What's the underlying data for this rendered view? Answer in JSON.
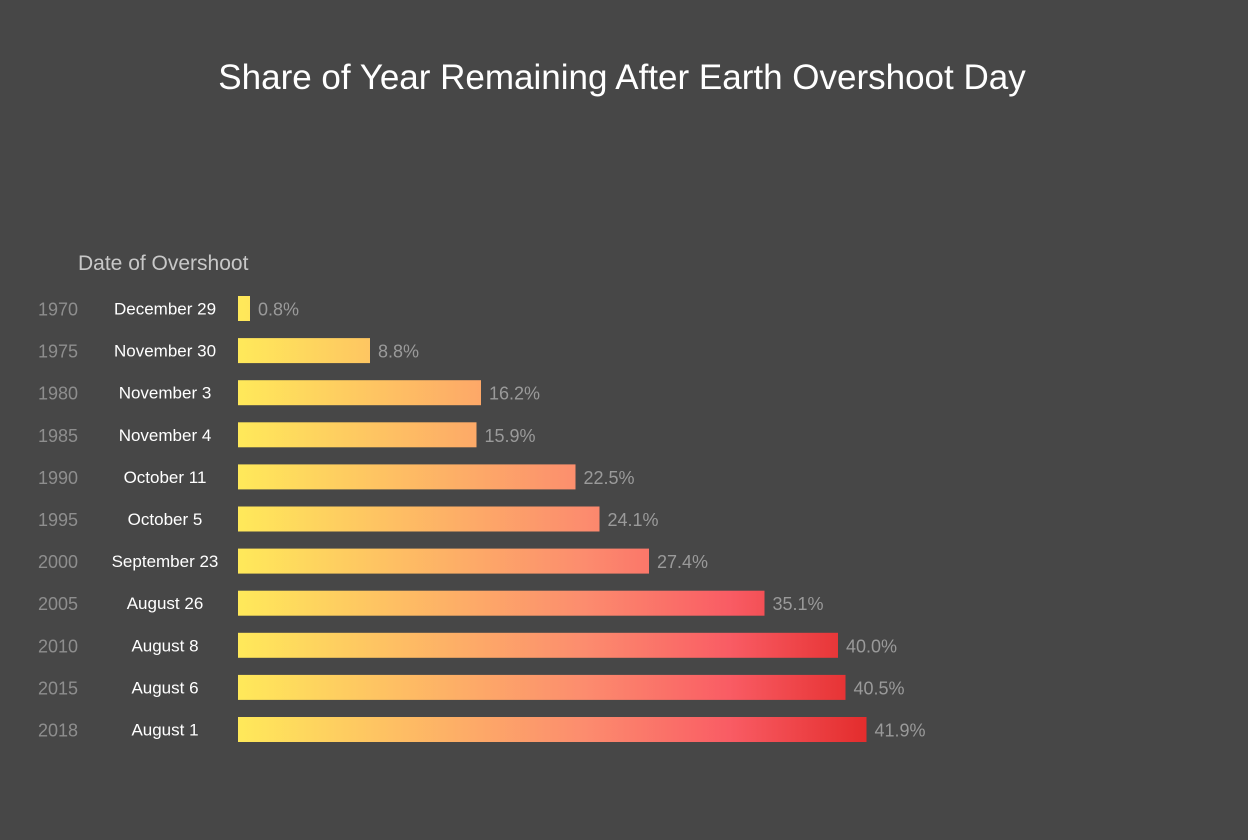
{
  "chart_data": {
    "type": "bar",
    "orientation": "horizontal",
    "title": "Share of Year Remaining After Earth Overshoot Day",
    "category_header": "Date of Overshoot",
    "categories": [
      "1970",
      "1975",
      "1980",
      "1985",
      "1990",
      "1995",
      "2000",
      "2005",
      "2010",
      "2015",
      "2018"
    ],
    "dates": [
      "December 29",
      "November 30",
      "November 3",
      "November 4",
      "October 11",
      "October 5",
      "September 23",
      "August 26",
      "August 8",
      "August 6",
      "August 1"
    ],
    "values": [
      0.8,
      8.8,
      16.2,
      15.9,
      22.5,
      24.1,
      27.4,
      35.1,
      40.0,
      40.5,
      41.9
    ],
    "value_labels": [
      "0.8%",
      "8.8%",
      "16.2%",
      "15.9%",
      "22.5%",
      "24.1%",
      "27.4%",
      "35.1%",
      "40.0%",
      "40.5%",
      "41.9%"
    ],
    "xlim": [
      0,
      42
    ],
    "grid": false,
    "legend": "none",
    "colors": {
      "background": "#474747",
      "gradient_start": "#ffe95a",
      "gradient_mid": "#fc8c6e",
      "gradient_end": "#e32c2c"
    }
  }
}
